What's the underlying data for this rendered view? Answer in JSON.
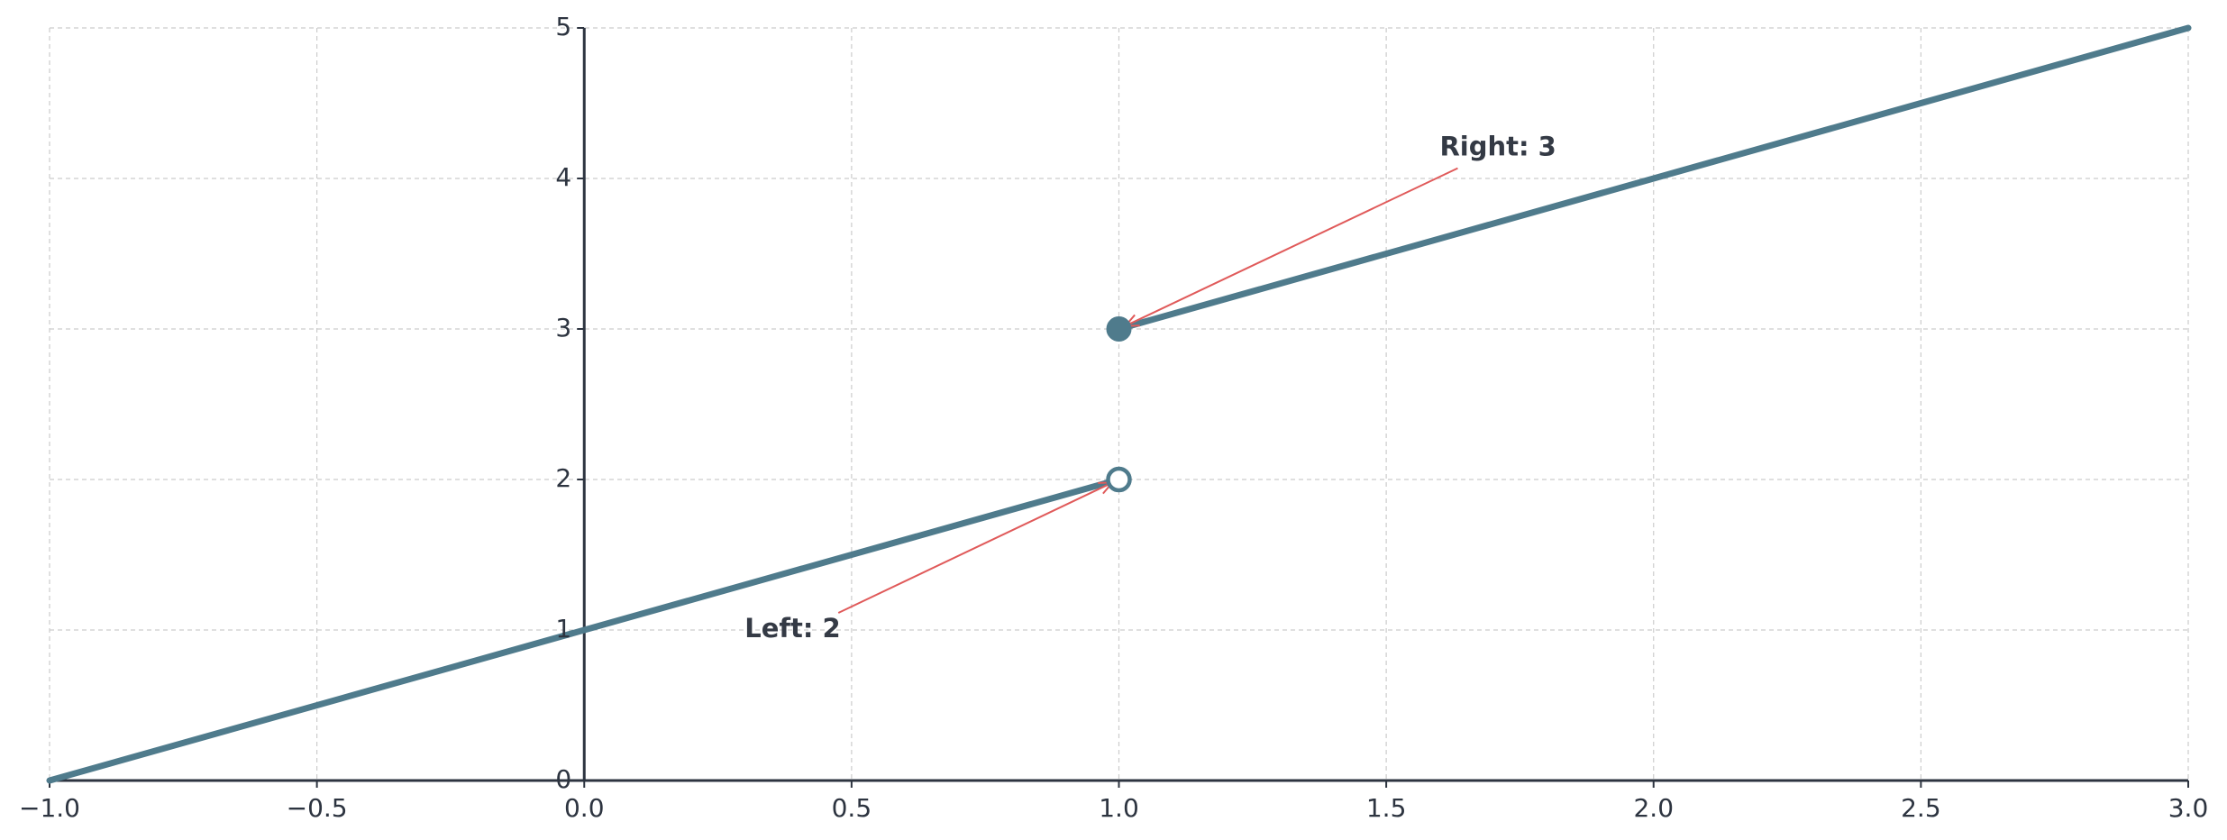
{
  "chart_data": {
    "type": "line",
    "title": "",
    "xlabel": "",
    "ylabel": "",
    "xlim": [
      -1.0,
      3.0
    ],
    "ylim": [
      0,
      5
    ],
    "grid": true,
    "x_ticks": [
      -1.0,
      -0.5,
      0.0,
      0.5,
      1.0,
      1.5,
      2.0,
      2.5,
      3.0
    ],
    "x_tick_labels": [
      "−1.0",
      "−0.5",
      "0.0",
      "0.5",
      "1.0",
      "1.5",
      "2.0",
      "2.5",
      "3.0"
    ],
    "y_ticks": [
      0,
      1,
      2,
      3,
      4,
      5
    ],
    "y_tick_labels": [
      "0",
      "1",
      "2",
      "3",
      "4",
      "5"
    ],
    "series": [
      {
        "x": [
          -1.0,
          1.0
        ],
        "y": [
          0,
          2
        ]
      },
      {
        "x": [
          1.0,
          3.0
        ],
        "y": [
          3,
          5
        ]
      }
    ],
    "points": [
      {
        "x": 1.0,
        "y": 2,
        "style": "open"
      },
      {
        "x": 1.0,
        "y": 3,
        "style": "filled"
      }
    ],
    "annotations": [
      {
        "text": "Left: 2",
        "text_x": 0.3,
        "text_y": 1.0,
        "target_x": 1.0,
        "target_y": 2
      },
      {
        "text": "Right: 3",
        "text_x": 1.6,
        "text_y": 4.2,
        "target_x": 1.0,
        "target_y": 3
      }
    ],
    "colors": {
      "line": "#4f7b8c",
      "axis": "#2d3440",
      "grid": "#cccccc",
      "arrow": "#e05a5a",
      "text": "#343a45"
    }
  }
}
